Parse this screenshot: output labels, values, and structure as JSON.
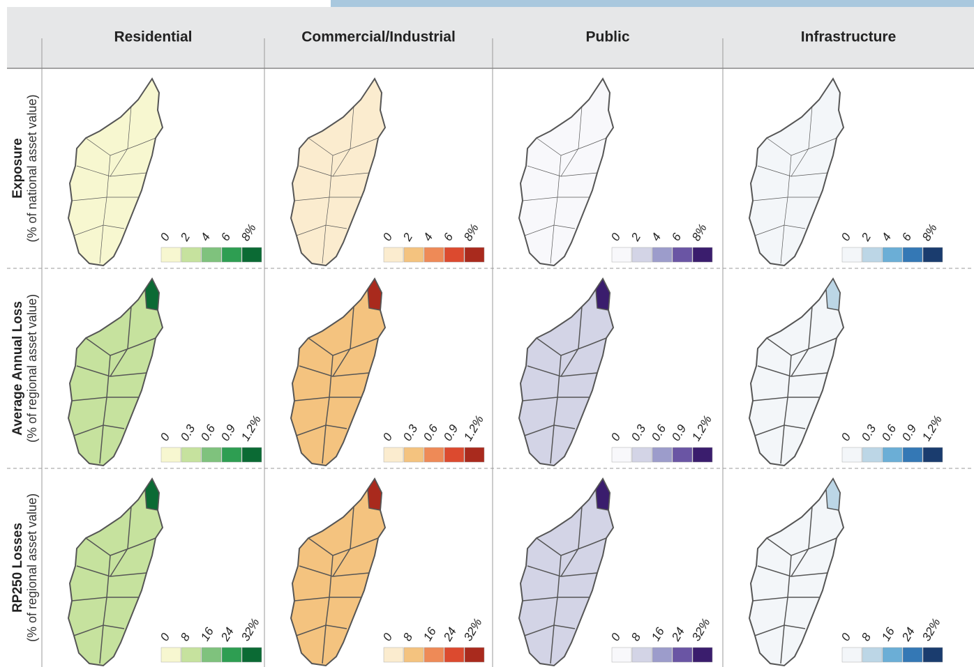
{
  "columns": [
    {
      "title": "Residential",
      "palette": [
        "#f7f7d0",
        "#c6e29e",
        "#7fc27d",
        "#2e9e52",
        "#0b6a34"
      ]
    },
    {
      "title": "Commercial/Industrial",
      "palette": [
        "#fbeccf",
        "#f4c37f",
        "#ee8a57",
        "#dc4a2f",
        "#a92a1d"
      ]
    },
    {
      "title": "Public",
      "palette": [
        "#f8f8fb",
        "#d3d4e6",
        "#9c9ccb",
        "#6a55a4",
        "#3a1d6d"
      ]
    },
    {
      "title": "Infrastructure",
      "palette": [
        "#f3f6f9",
        "#bcd6e6",
        "#6baed6",
        "#3478b5",
        "#1a3c6e"
      ]
    }
  ],
  "rows": [
    {
      "title": "Exposure",
      "subtitle": "(% of national asset value)",
      "legend": [
        "0",
        "2",
        "4",
        "6",
        "8%"
      ]
    },
    {
      "title": "Average Annual Loss",
      "subtitle": "(% of regional asset value)",
      "legend": [
        "0",
        "0.3",
        "0.6",
        "0.9",
        "1.2%"
      ]
    },
    {
      "title": "RP250 Losses",
      "subtitle": "(% of regional asset value)",
      "legend": [
        "0",
        "8",
        "16",
        "24",
        "32%"
      ]
    }
  ]
}
